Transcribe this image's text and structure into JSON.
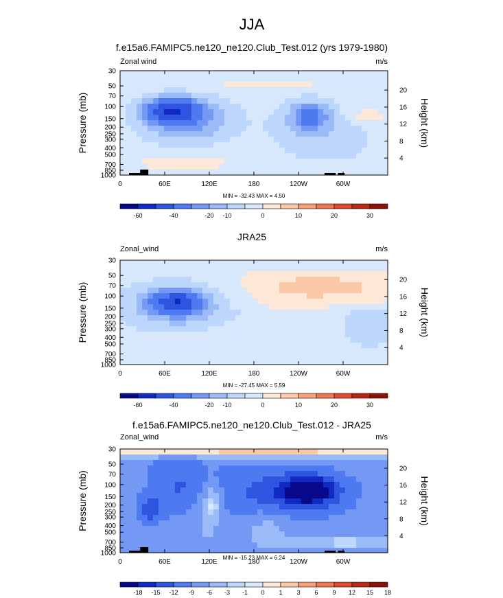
{
  "page_title": "JJA",
  "colors": {
    "abs": [
      "#08088a",
      "#0f29c2",
      "#2f55e0",
      "#4d7af0",
      "#7399f5",
      "#9bbaf8",
      "#bdd6fb",
      "#d8e8fc",
      "#fde7d6",
      "#fbc9a8",
      "#f6a07a",
      "#ef7552",
      "#df4a2e",
      "#b92716",
      "#8c1106"
    ],
    "diff": [
      "#08088a",
      "#0f29c2",
      "#2f55e0",
      "#4d7af0",
      "#7399f5",
      "#9bbaf8",
      "#bdd6fb",
      "#d8e8fc",
      "#fde7d6",
      "#fbc9a8",
      "#f6a07a",
      "#ef7552",
      "#df4a2e",
      "#b92716",
      "#8c1106"
    ],
    "terrain": "#000000"
  },
  "chart_data": [
    {
      "type": "contour",
      "title": "f.e15a6.FAMIPC5.ne120_ne120.Club_Test.012 (yrs 1979-1980)",
      "left_label": "Zonal wind",
      "units": "m/s",
      "ylabel": "Pressure (mb)",
      "y2label": "Height (km)",
      "pressure_ticks": [
        "30",
        "50",
        "70",
        "100",
        "150",
        "200",
        "250",
        "300",
        "400",
        "500",
        "700",
        "850",
        "1000"
      ],
      "height_ticks": [
        "20",
        "16",
        "12",
        "8",
        "4"
      ],
      "lon_ticks": [
        "0",
        "60E",
        "120E",
        "180",
        "120W",
        "60W"
      ],
      "stats": "MIN = -32.43   MAX =   4.50",
      "colorbar_labels": [
        "-60",
        "-40",
        "-20",
        "-10",
        "0",
        "10",
        "20",
        "30"
      ],
      "xlim": [
        0,
        360
      ],
      "plim": [
        1000,
        30
      ]
    },
    {
      "type": "contour",
      "title": "JRA25",
      "left_label": "Zonal_wind",
      "units": "m/s",
      "ylabel": "Pressure (mb)",
      "y2label": "Height (km)",
      "pressure_ticks": [
        "30",
        "50",
        "70",
        "100",
        "150",
        "200",
        "250",
        "300",
        "400",
        "500",
        "700",
        "850",
        "1000"
      ],
      "height_ticks": [
        "20",
        "16",
        "12",
        "8",
        "4"
      ],
      "lon_ticks": [
        "0",
        "60E",
        "120E",
        "180",
        "120W",
        "60W"
      ],
      "stats": "MIN = -27.45   MAX =   5.59",
      "colorbar_labels": [
        "-60",
        "-40",
        "-20",
        "-10",
        "0",
        "10",
        "20",
        "30"
      ],
      "xlim": [
        0,
        360
      ],
      "plim": [
        1000,
        30
      ]
    },
    {
      "type": "contour",
      "title": "f.e15a6.FAMIPC5.ne120_ne120.Club_Test.012 - JRA25",
      "left_label": "Zonal_wind",
      "units": "m/s",
      "ylabel": "Pressure (mb)",
      "y2label": "Height (km)",
      "pressure_ticks": [
        "30",
        "50",
        "70",
        "100",
        "150",
        "200",
        "250",
        "300",
        "400",
        "500",
        "700",
        "850",
        "1000"
      ],
      "height_ticks": [
        "20",
        "16",
        "12",
        "8",
        "4"
      ],
      "lon_ticks": [
        "0",
        "60E",
        "120E",
        "180",
        "120W",
        "60W"
      ],
      "stats": "MIN = -15.23   MAX =   6.24",
      "colorbar_labels": [
        "-18",
        "-15",
        "-12",
        "-9",
        "-6",
        "-3",
        "-1",
        "0",
        "1",
        "3",
        "6",
        "9",
        "12",
        "15",
        "18"
      ],
      "xlim": [
        0,
        360
      ],
      "plim": [
        1000,
        30
      ]
    }
  ]
}
